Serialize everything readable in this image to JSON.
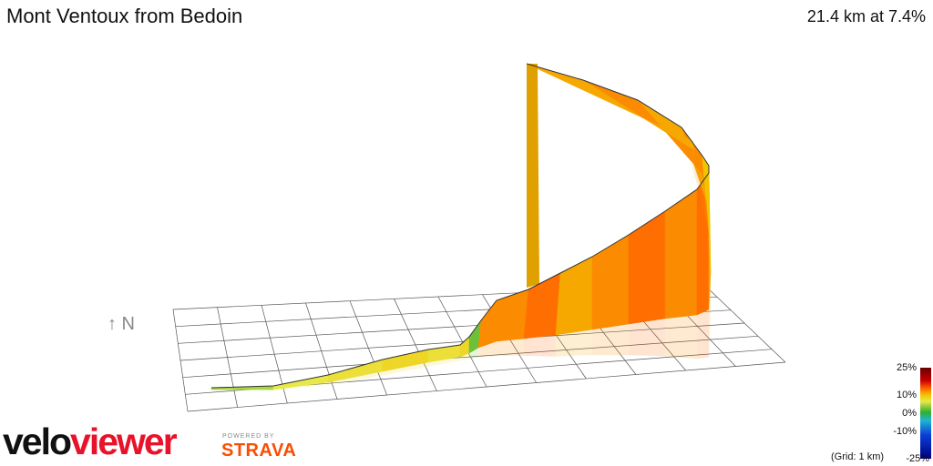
{
  "header": {
    "title": "Mont Ventoux from Bedoin",
    "stats": "21.4 km at 7.4%"
  },
  "compass": {
    "label": "↑ N"
  },
  "legend": {
    "ticks": [
      "25%",
      "10%",
      "0%",
      "-10%",
      "-25%"
    ],
    "grid_note": "(Grid: 1 km)"
  },
  "branding": {
    "logo_part1": "velo",
    "logo_part2": "viewer",
    "powered_by": "POWERED BY",
    "strava": "STRAVA"
  },
  "chart_data": {
    "type": "area",
    "title": "Mont Ventoux from Bedoin",
    "subtitle": "21.4 km at 7.4%",
    "xlabel": "",
    "ylabel": "",
    "grid": true,
    "x": [
      0,
      1,
      2,
      3,
      4,
      5,
      6,
      7,
      8,
      9,
      10,
      11,
      12,
      13,
      14,
      15,
      16,
      17,
      18,
      19,
      20,
      21,
      21.4
    ],
    "gradient_pct": [
      2,
      3,
      4,
      5,
      4,
      5,
      1,
      9,
      9,
      10,
      8,
      9,
      9,
      10,
      9,
      10,
      8,
      7,
      9,
      8,
      9,
      8,
      10
    ],
    "colorscale": {
      "min": -25,
      "max": 25,
      "unit": "%"
    }
  }
}
